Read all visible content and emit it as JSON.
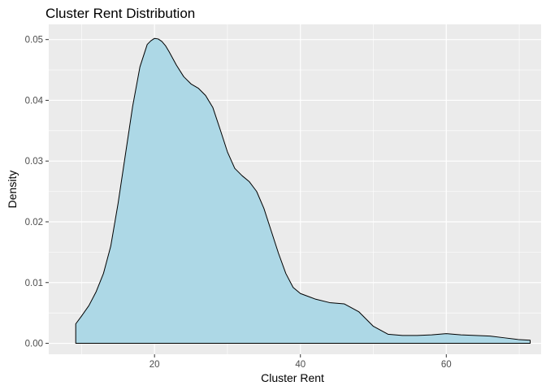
{
  "chart_data": {
    "type": "area",
    "title": "Cluster Rent Distribution",
    "xlabel": "Cluster Rent",
    "ylabel": "Density",
    "xlim": [
      5.5,
      73
    ],
    "ylim": [
      -0.0018,
      0.0525
    ],
    "x_ticks": [
      20,
      40,
      60
    ],
    "x_tick_labels": [
      "20",
      "40",
      "60"
    ],
    "x_minor_ticks": [
      10,
      30,
      50,
      70
    ],
    "y_ticks": [
      0.0,
      0.01,
      0.02,
      0.03,
      0.04,
      0.05
    ],
    "y_tick_labels": [
      "0.00",
      "0.01",
      "0.02",
      "0.03",
      "0.04",
      "0.05"
    ],
    "y_minor_ticks": [
      0.005,
      0.015,
      0.025,
      0.035,
      0.045
    ],
    "grid": true,
    "fill_color": "#add8e6",
    "line_color": "#000000",
    "panel_color": "#ebebeb",
    "series": [
      {
        "x": [
          9.2,
          10,
          11,
          12,
          13,
          14,
          15,
          16,
          17,
          18,
          19,
          19.5,
          20,
          20.5,
          21,
          21.5,
          22,
          23,
          24,
          25,
          26,
          27,
          28,
          29,
          30,
          31,
          32,
          33,
          34,
          35,
          36,
          37,
          38,
          39,
          40,
          42,
          44,
          46,
          48,
          50,
          52,
          54,
          56,
          58,
          60,
          62,
          64,
          66,
          68,
          70,
          71.5
        ],
        "y": [
          0.0032,
          0.0045,
          0.0062,
          0.0085,
          0.0115,
          0.016,
          0.023,
          0.031,
          0.039,
          0.0455,
          0.0492,
          0.0498,
          0.0502,
          0.0501,
          0.0497,
          0.049,
          0.048,
          0.0458,
          0.0439,
          0.0427,
          0.042,
          0.0408,
          0.0388,
          0.0352,
          0.0315,
          0.0288,
          0.0276,
          0.0266,
          0.025,
          0.0222,
          0.0185,
          0.0148,
          0.0115,
          0.0092,
          0.0082,
          0.0073,
          0.0067,
          0.0065,
          0.0052,
          0.0028,
          0.0015,
          0.0013,
          0.0013,
          0.0014,
          0.0016,
          0.0014,
          0.0013,
          0.0012,
          0.0009,
          0.0006,
          0.0005
        ]
      }
    ]
  }
}
